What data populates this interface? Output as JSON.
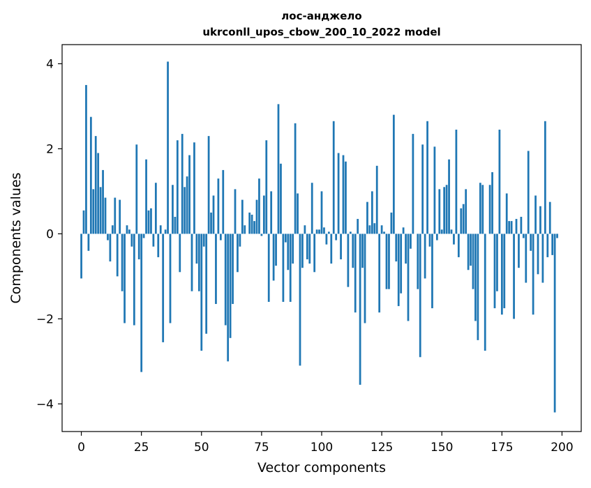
{
  "chart_data": {
    "type": "bar",
    "title_line1": "лос-анджело",
    "title_line2": "ukrconll_upos_cbow_200_10_2022 model",
    "xlabel": "Vector components",
    "ylabel": "Components values",
    "xlim": [
      -8,
      208
    ],
    "ylim": [
      -4.65,
      4.45
    ],
    "xticks": [
      0,
      25,
      50,
      75,
      100,
      125,
      150,
      175,
      200
    ],
    "yticks": [
      -4,
      -2,
      0,
      2,
      4
    ],
    "ytick_labels": [
      "−4",
      "−2",
      "0",
      "2",
      "4"
    ],
    "grid": false,
    "bar_color": "#1f77b4",
    "values": [
      -1.05,
      0.55,
      3.5,
      -0.4,
      2.75,
      1.05,
      2.3,
      1.9,
      1.1,
      1.5,
      0.85,
      -0.15,
      -0.65,
      0.2,
      0.85,
      -1.0,
      0.8,
      -1.35,
      -2.1,
      0.2,
      0.1,
      -0.3,
      -2.15,
      2.1,
      -0.6,
      -3.25,
      -0.1,
      1.75,
      0.55,
      0.6,
      -0.3,
      1.2,
      -0.55,
      0.2,
      -2.55,
      0.1,
      4.05,
      -2.1,
      1.15,
      0.4,
      2.2,
      -0.9,
      2.35,
      1.1,
      1.35,
      1.85,
      -1.35,
      2.15,
      -0.7,
      -1.35,
      -2.75,
      -0.3,
      -2.35,
      2.3,
      0.5,
      0.9,
      -1.65,
      1.3,
      -0.15,
      1.5,
      -2.15,
      -3.0,
      -2.45,
      -1.65,
      1.05,
      -0.9,
      -0.3,
      0.8,
      0.2,
      0.0,
      0.5,
      0.45,
      0.3,
      0.8,
      1.3,
      -0.05,
      0.9,
      2.2,
      -1.6,
      1.0,
      -1.1,
      -0.75,
      3.05,
      1.65,
      -1.6,
      -0.2,
      -0.85,
      -1.6,
      -0.7,
      2.6,
      0.95,
      -3.1,
      -0.8,
      0.2,
      -0.6,
      -0.7,
      1.2,
      -0.9,
      0.1,
      0.1,
      1.0,
      0.15,
      -0.25,
      0.05,
      -0.7,
      2.65,
      -0.15,
      1.9,
      -0.6,
      1.85,
      1.7,
      -1.25,
      0.05,
      -0.8,
      -1.85,
      0.35,
      -3.55,
      -0.8,
      -2.1,
      0.75,
      0.2,
      1.0,
      0.25,
      1.6,
      -1.85,
      0.2,
      0.05,
      -1.3,
      -1.3,
      0.5,
      2.8,
      -0.65,
      -1.7,
      -1.4,
      0.15,
      -0.7,
      -2.05,
      -0.35,
      2.35,
      0.0,
      -1.3,
      -2.9,
      2.1,
      -1.05,
      2.65,
      -0.3,
      -1.75,
      2.05,
      -0.15,
      1.05,
      0.1,
      1.1,
      1.15,
      1.75,
      0.1,
      -0.25,
      2.45,
      -0.55,
      0.6,
      0.7,
      1.05,
      -0.85,
      -0.75,
      -1.3,
      -2.05,
      -2.5,
      1.2,
      1.15,
      -2.75,
      0.0,
      1.15,
      1.45,
      -1.75,
      -1.35,
      2.45,
      -1.9,
      -1.75,
      0.95,
      0.3,
      0.3,
      -2.0,
      0.35,
      -0.8,
      0.4,
      -0.1,
      -1.15,
      1.95,
      -0.4,
      -1.9,
      0.9,
      -0.95,
      0.65,
      -1.15,
      2.65,
      -0.55,
      0.75,
      -0.5,
      -4.2,
      -0.1
    ]
  }
}
